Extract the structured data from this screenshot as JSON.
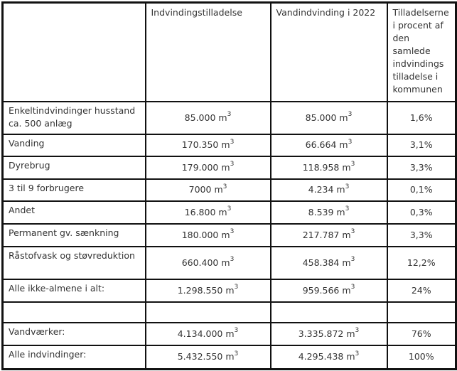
{
  "table": {
    "headers": [
      "",
      "Indvindingstilladelse",
      "Vandindvinding i 2022",
      "Tilladelserne i procent af den samlede indvindings tilladelse i kommunen"
    ],
    "unit": "m",
    "unit_exponent": "3",
    "rows": [
      {
        "label": "Enkeltindvindinger husstand ca. 500 anlæg",
        "permit": "85.000",
        "usage": "85.000",
        "percent": "1,6%"
      },
      {
        "label": "Vanding",
        "permit": "170.350",
        "usage": "66.664",
        "percent": "3,1%"
      },
      {
        "label": "Dyrebrug",
        "permit": "179.000",
        "usage": "118.958",
        "percent": "3,3%"
      },
      {
        "label": "3 til 9 forbrugere",
        "permit": "7000",
        "usage": "4.234",
        "percent": "0,1%"
      },
      {
        "label": "Andet",
        "permit": "16.800",
        "usage": "8.539",
        "percent": "0,3%"
      },
      {
        "label": "Permanent gv. sænkning",
        "permit": "180.000",
        "usage": "217.787",
        "percent": "3,3%"
      },
      {
        "label": "Råstofvask og støvreduktion",
        "permit": "660.400",
        "usage": "458.384",
        "percent": "12,2%"
      },
      {
        "label": "Alle ikke-almene i alt:",
        "permit": "1.298.550",
        "usage": "959.566",
        "percent": "24%"
      },
      {
        "label": "",
        "permit": "",
        "usage": "",
        "percent": ""
      },
      {
        "label": "Vandværker:",
        "permit": "4.134.000",
        "usage": "3.335.872",
        "percent": "76%"
      },
      {
        "label": "Alle indvindinger:",
        "permit": "5.432.550",
        "usage": "4.295.438",
        "percent": "100%"
      }
    ]
  }
}
